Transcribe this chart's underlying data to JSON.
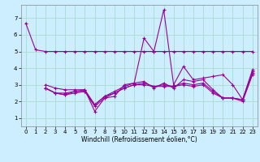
{
  "title": "",
  "xlabel": "Windchill (Refroidissement éolien,°C)",
  "ylabel": "",
  "background_color": "#cceeff",
  "grid_color": "#aaddcc",
  "line_color": "#990099",
  "xlim": [
    -0.5,
    23.5
  ],
  "ylim": [
    0.5,
    7.8
  ],
  "xticks": [
    0,
    1,
    2,
    3,
    4,
    5,
    6,
    7,
    8,
    9,
    10,
    11,
    12,
    13,
    14,
    15,
    16,
    17,
    18,
    19,
    20,
    21,
    22,
    23
  ],
  "yticks": [
    1,
    2,
    3,
    4,
    5,
    6,
    7
  ],
  "series": [
    [
      6.7,
      5.1,
      5.0,
      5.0,
      5.0,
      5.0,
      5.0,
      5.0,
      5.0,
      5.0,
      5.0,
      5.0,
      5.0,
      5.0,
      5.0,
      5.0,
      5.0,
      5.0,
      5.0,
      5.0,
      5.0,
      5.0,
      5.0,
      5.0
    ],
    [
      null,
      null,
      3.0,
      2.8,
      2.7,
      2.7,
      2.7,
      1.4,
      2.2,
      2.3,
      3.0,
      3.1,
      5.8,
      5.0,
      7.5,
      3.0,
      4.1,
      3.3,
      3.4,
      3.5,
      3.6,
      3.0,
      2.1,
      3.9
    ],
    [
      null,
      null,
      2.8,
      2.5,
      2.5,
      2.6,
      2.7,
      1.8,
      2.3,
      2.6,
      2.9,
      3.1,
      3.2,
      2.8,
      3.1,
      2.8,
      3.3,
      3.2,
      3.3,
      2.7,
      2.2,
      2.2,
      2.1,
      3.8
    ],
    [
      null,
      null,
      2.8,
      2.5,
      2.4,
      2.6,
      2.6,
      1.8,
      2.3,
      2.5,
      2.8,
      3.0,
      3.1,
      2.9,
      3.0,
      2.9,
      3.1,
      3.0,
      3.1,
      2.6,
      2.2,
      2.2,
      2.1,
      3.7
    ],
    [
      null,
      null,
      2.8,
      2.5,
      2.4,
      2.5,
      2.6,
      1.7,
      2.2,
      2.5,
      2.8,
      3.0,
      3.0,
      2.9,
      2.9,
      2.9,
      3.0,
      2.9,
      3.0,
      2.5,
      2.2,
      2.2,
      2.0,
      3.6
    ]
  ],
  "figsize": [
    3.2,
    2.0
  ],
  "dpi": 100
}
